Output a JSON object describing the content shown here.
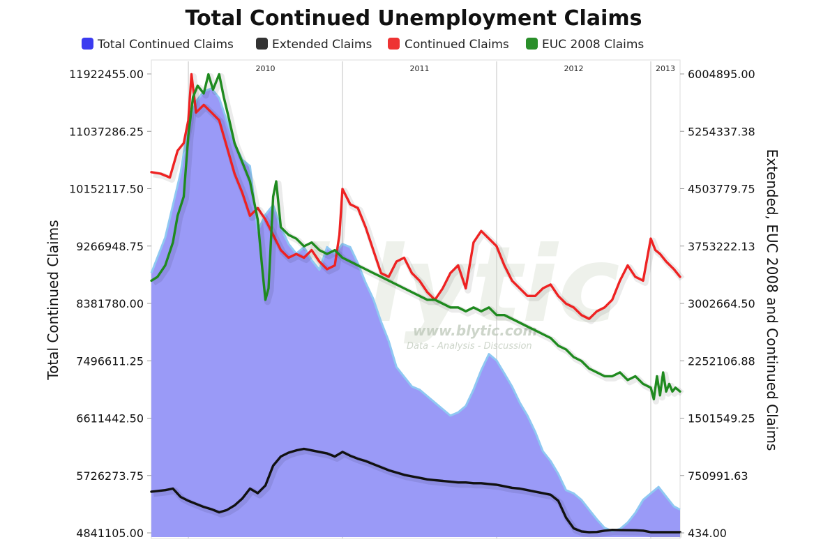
{
  "chart_data": {
    "type": "line",
    "title": "Total Continued Unemployment Claims",
    "legend_position": "top",
    "left_axis": {
      "label": "Total Continued Claims",
      "ticks": [
        "11922455.00",
        "11037286.25",
        "10152117.50",
        "9266948.75",
        "8381780.00",
        "7496611.25",
        "6611442.50",
        "5726273.75",
        "4841105.00"
      ],
      "ylim": [
        4841105,
        11922455
      ]
    },
    "right_axis": {
      "label": "Extended, EUC 2008 and Continued Claims",
      "ticks": [
        "6004895.00",
        "5254337.38",
        "4503779.75",
        "3753222.13",
        "3002664.50",
        "2252106.88",
        "1501549.25",
        "750991.63",
        "434.00"
      ],
      "ylim": [
        434,
        6004895
      ]
    },
    "year_labels": [
      "2010",
      "2011",
      "2012",
      "2013"
    ],
    "year_dividers": [
      2010.0,
      2011.0,
      2012.0,
      2013.0
    ],
    "grid": "vertical year dividers only",
    "x_range": [
      2009.76,
      2013.19
    ],
    "series": [
      {
        "name": "Total Continued Claims",
        "axis": "left",
        "style": "area",
        "color": "#3b3bf0",
        "fill": "#9a9af7",
        "x": [
          2009.76,
          2009.85,
          2009.95,
          2010.0,
          2010.05,
          2010.1,
          2010.15,
          2010.2,
          2010.25,
          2010.3,
          2010.35,
          2010.4,
          2010.45,
          2010.5,
          2010.55,
          2010.6,
          2010.65,
          2010.7,
          2010.75,
          2010.8,
          2010.85,
          2010.9,
          2010.95,
          2011.0,
          2011.05,
          2011.1,
          2011.15,
          2011.2,
          2011.25,
          2011.3,
          2011.35,
          2011.4,
          2011.45,
          2011.5,
          2011.55,
          2011.6,
          2011.65,
          2011.7,
          2011.75,
          2011.8,
          2011.85,
          2011.9,
          2011.95,
          2012.0,
          2012.05,
          2012.1,
          2012.15,
          2012.2,
          2012.25,
          2012.3,
          2012.35,
          2012.4,
          2012.45,
          2012.5,
          2012.55,
          2012.6,
          2012.65,
          2012.7,
          2012.75,
          2012.8,
          2012.85,
          2012.9,
          2012.95,
          2013.0,
          2013.05,
          2013.1,
          2013.15,
          2013.19
        ],
        "values": [
          8850000,
          9400000,
          10400000,
          11150000,
          11500000,
          11650000,
          11700000,
          11550000,
          11200000,
          10850000,
          10600000,
          10500000,
          9500000,
          9750000,
          9900000,
          9550000,
          9300000,
          9150000,
          9250000,
          9050000,
          8900000,
          9250000,
          9150000,
          9300000,
          9250000,
          9000000,
          8700000,
          8450000,
          8100000,
          7800000,
          7400000,
          7250000,
          7100000,
          7050000,
          6950000,
          6850000,
          6750000,
          6650000,
          6700000,
          6800000,
          7050000,
          7350000,
          7600000,
          7500000,
          7300000,
          7100000,
          6850000,
          6650000,
          6400000,
          6100000,
          5950000,
          5750000,
          5500000,
          5450000,
          5350000,
          5200000,
          5050000,
          4920000,
          4870000,
          4900000,
          5000000,
          5150000,
          5350000,
          5450000,
          5550000,
          5400000,
          5250000,
          5200000
        ]
      },
      {
        "name": "Extended Claims",
        "axis": "right",
        "style": "line",
        "color": "#111111",
        "x": [
          2009.76,
          2009.85,
          2009.9,
          2009.95,
          2010.0,
          2010.05,
          2010.1,
          2010.15,
          2010.2,
          2010.25,
          2010.3,
          2010.35,
          2010.4,
          2010.45,
          2010.5,
          2010.55,
          2010.6,
          2010.65,
          2010.7,
          2010.75,
          2010.8,
          2010.85,
          2010.9,
          2010.95,
          2011.0,
          2011.05,
          2011.1,
          2011.15,
          2011.2,
          2011.25,
          2011.3,
          2011.35,
          2011.4,
          2011.45,
          2011.5,
          2011.55,
          2011.6,
          2011.65,
          2011.7,
          2011.75,
          2011.8,
          2011.85,
          2011.9,
          2011.95,
          2012.0,
          2012.05,
          2012.1,
          2012.15,
          2012.2,
          2012.25,
          2012.3,
          2012.35,
          2012.4,
          2012.45,
          2012.5,
          2012.55,
          2012.6,
          2012.65,
          2012.7,
          2012.75,
          2012.8,
          2012.85,
          2012.9,
          2012.95,
          2013.0,
          2013.05,
          2013.1,
          2013.15,
          2013.19
        ],
        "values": [
          540000,
          560000,
          580000,
          470000,
          420000,
          380000,
          340000,
          310000,
          270000,
          300000,
          360000,
          450000,
          580000,
          520000,
          620000,
          880000,
          1000000,
          1050000,
          1080000,
          1100000,
          1080000,
          1060000,
          1040000,
          1000000,
          1060000,
          1010000,
          970000,
          940000,
          900000,
          860000,
          820000,
          790000,
          760000,
          740000,
          720000,
          700000,
          690000,
          680000,
          670000,
          660000,
          660000,
          650000,
          650000,
          640000,
          630000,
          610000,
          590000,
          580000,
          560000,
          540000,
          520000,
          500000,
          420000,
          200000,
          60000,
          20000,
          10000,
          12000,
          30000,
          40000,
          38000,
          36000,
          35000,
          30000,
          10000,
          10000,
          10000,
          10000,
          10000
        ]
      },
      {
        "name": "Continued Claims",
        "axis": "right",
        "style": "line",
        "color": "#ee2222",
        "x": [
          2009.76,
          2009.82,
          2009.88,
          2009.93,
          2009.97,
          2010.0,
          2010.02,
          2010.05,
          2010.1,
          2010.15,
          2010.2,
          2010.25,
          2010.3,
          2010.35,
          2010.4,
          2010.45,
          2010.5,
          2010.55,
          2010.6,
          2010.65,
          2010.7,
          2010.75,
          2010.8,
          2010.85,
          2010.9,
          2010.95,
          2010.98,
          2011.0,
          2011.05,
          2011.1,
          2011.15,
          2011.2,
          2011.25,
          2011.3,
          2011.35,
          2011.4,
          2011.45,
          2011.5,
          2011.55,
          2011.6,
          2011.65,
          2011.7,
          2011.75,
          2011.8,
          2011.85,
          2011.9,
          2011.95,
          2012.0,
          2012.05,
          2012.1,
          2012.15,
          2012.2,
          2012.25,
          2012.3,
          2012.35,
          2012.4,
          2012.45,
          2012.5,
          2012.55,
          2012.6,
          2012.65,
          2012.7,
          2012.75,
          2012.8,
          2012.85,
          2012.9,
          2012.95,
          2013.0,
          2013.03,
          2013.06,
          2013.1,
          2013.15,
          2013.19
        ],
        "values": [
          4720000,
          4700000,
          4650000,
          5000000,
          5100000,
          5400000,
          6000000,
          5500000,
          5600000,
          5500000,
          5400000,
          5050000,
          4700000,
          4450000,
          4150000,
          4250000,
          4100000,
          3900000,
          3700000,
          3600000,
          3650000,
          3600000,
          3700000,
          3550000,
          3450000,
          3500000,
          3900000,
          4500000,
          4300000,
          4250000,
          4000000,
          3700000,
          3400000,
          3350000,
          3550000,
          3600000,
          3400000,
          3300000,
          3150000,
          3050000,
          3200000,
          3400000,
          3500000,
          3200000,
          3800000,
          3950000,
          3850000,
          3750000,
          3500000,
          3300000,
          3200000,
          3100000,
          3100000,
          3200000,
          3250000,
          3100000,
          3000000,
          2950000,
          2850000,
          2800000,
          2900000,
          2950000,
          3050000,
          3300000,
          3500000,
          3350000,
          3300000,
          3850000,
          3700000,
          3650000,
          3550000,
          3450000,
          3350000
        ]
      },
      {
        "name": "EUC 2008 Claims",
        "axis": "right",
        "style": "line",
        "color": "#1f8a1f",
        "x": [
          2009.76,
          2009.8,
          2009.85,
          2009.9,
          2009.93,
          2009.97,
          2010.0,
          2010.03,
          2010.06,
          2010.1,
          2010.13,
          2010.16,
          2010.2,
          2010.23,
          2010.26,
          2010.3,
          2010.35,
          2010.4,
          2010.45,
          2010.48,
          2010.5,
          2010.52,
          2010.55,
          2010.57,
          2010.6,
          2010.65,
          2010.7,
          2010.75,
          2010.8,
          2010.85,
          2010.9,
          2010.95,
          2011.0,
          2011.05,
          2011.1,
          2011.15,
          2011.2,
          2011.25,
          2011.3,
          2011.35,
          2011.4,
          2011.45,
          2011.5,
          2011.55,
          2011.6,
          2011.65,
          2011.7,
          2011.75,
          2011.8,
          2011.85,
          2011.9,
          2011.95,
          2012.0,
          2012.05,
          2012.1,
          2012.15,
          2012.2,
          2012.25,
          2012.3,
          2012.35,
          2012.4,
          2012.45,
          2012.5,
          2012.55,
          2012.6,
          2012.65,
          2012.7,
          2012.75,
          2012.8,
          2012.85,
          2012.9,
          2012.95,
          2013.0,
          2013.02,
          2013.04,
          2013.06,
          2013.08,
          2013.1,
          2013.12,
          2013.14,
          2013.16,
          2013.19
        ],
        "values": [
          3300000,
          3350000,
          3500000,
          3800000,
          4150000,
          4400000,
          5200000,
          5700000,
          5850000,
          5750000,
          6000000,
          5800000,
          6000000,
          5700000,
          5450000,
          5100000,
          4850000,
          4600000,
          4100000,
          3450000,
          3050000,
          3200000,
          4400000,
          4600000,
          4000000,
          3900000,
          3850000,
          3750000,
          3800000,
          3700000,
          3650000,
          3700000,
          3600000,
          3550000,
          3500000,
          3450000,
          3400000,
          3350000,
          3300000,
          3250000,
          3200000,
          3150000,
          3100000,
          3050000,
          3050000,
          3000000,
          2950000,
          2950000,
          2900000,
          2950000,
          2900000,
          2950000,
          2850000,
          2850000,
          2800000,
          2750000,
          2700000,
          2650000,
          2600000,
          2550000,
          2450000,
          2400000,
          2300000,
          2250000,
          2150000,
          2100000,
          2050000,
          2050000,
          2100000,
          2000000,
          2050000,
          1950000,
          1900000,
          1750000,
          2050000,
          1800000,
          2100000,
          1850000,
          1950000,
          1850000,
          1900000,
          1850000
        ]
      }
    ]
  },
  "watermark": {
    "brand": "blytic",
    "url": "www.blytic.com",
    "tagline": "Data - Analysis - Discussion"
  }
}
